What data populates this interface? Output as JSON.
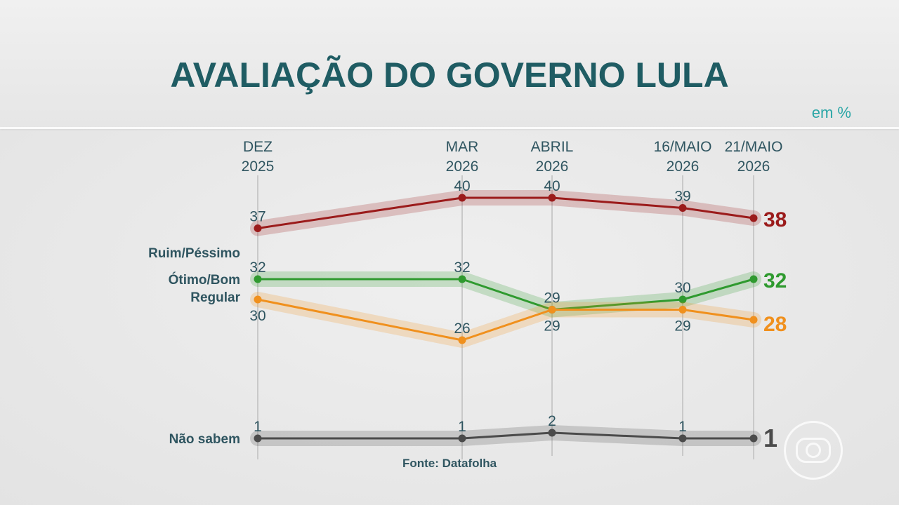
{
  "header": {
    "title": "AVALIAÇÃO DO GOVERNO LULA",
    "unit": "em %"
  },
  "footer": {
    "source": "Fonte: Datafolha"
  },
  "chart_data": {
    "type": "line",
    "categories": [
      [
        "DEZ",
        "2025"
      ],
      [
        "MAR",
        "2026"
      ],
      [
        "ABRIL",
        "2026"
      ],
      [
        "16/MAIO",
        "2026"
      ],
      [
        "21/MAIO",
        "2026"
      ]
    ],
    "ylim": [
      0,
      45
    ],
    "grid": "vertical lines at each survey date",
    "series": [
      {
        "name": "Ruim/Péssimo",
        "values": [
          37,
          40,
          40,
          39,
          38
        ],
        "color": "#9b1b1b"
      },
      {
        "name": "Ótimo/Bom",
        "values": [
          32,
          32,
          29,
          30,
          32
        ],
        "color": "#2f9a2f"
      },
      {
        "name": "Regular",
        "values": [
          30,
          26,
          29,
          29,
          28
        ],
        "color": "#f0901d"
      },
      {
        "name": "Não sabem",
        "values": [
          1,
          1,
          2,
          1,
          1
        ],
        "color": "#4b4b4b"
      }
    ]
  }
}
